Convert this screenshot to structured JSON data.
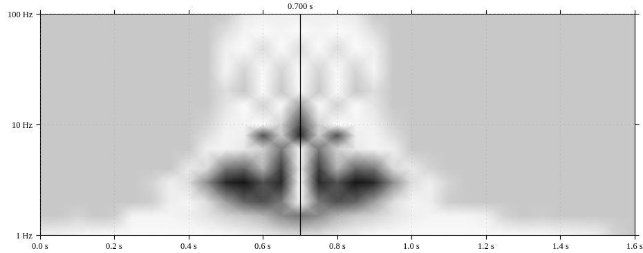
{
  "chart_data": {
    "type": "scalogram",
    "log": "y",
    "grid": true,
    "x": [
      0.0,
      0.05,
      0.1,
      0.15,
      0.2,
      0.25,
      0.3,
      0.35,
      0.4,
      0.45,
      0.5,
      0.55,
      0.6,
      0.65,
      0.7,
      0.75,
      0.8,
      0.85,
      0.9,
      0.95,
      1.0,
      1.05,
      1.1,
      1.15,
      1.2,
      1.25,
      1.3,
      1.35,
      1.4,
      1.45,
      1.5,
      1.55,
      1.6
    ],
    "y": [
      1,
      1.5,
      2,
      3,
      4,
      6,
      8,
      10,
      15,
      20,
      30,
      50,
      70,
      100
    ],
    "cells": [
      [
        0.85,
        0.9,
        0.92,
        0.95,
        0.95,
        0.95,
        0.95,
        0.95,
        0.95,
        0.95,
        0.95,
        0.9,
        0.85,
        0.75,
        0.7,
        0.75,
        0.85,
        0.9,
        0.95,
        0.95,
        0.95,
        0.95,
        0.95,
        0.95,
        0.95,
        0.95,
        0.95,
        0.95,
        0.92,
        0.9,
        0.85,
        0.6,
        0.5
      ],
      [
        0.5,
        0.5,
        0.6,
        0.5,
        0.55,
        0.9,
        0.9,
        0.9,
        0.85,
        0.75,
        0.6,
        0.5,
        0.45,
        0.35,
        0.3,
        0.35,
        0.45,
        0.5,
        0.6,
        0.75,
        0.85,
        0.9,
        0.9,
        0.9,
        0.85,
        0.6,
        0.5,
        0.55,
        0.5,
        0.5,
        0.5,
        0.5,
        0.5
      ],
      [
        0.5,
        0.5,
        0.5,
        0.5,
        0.5,
        0.5,
        0.55,
        0.85,
        0.9,
        0.7,
        0.4,
        0.25,
        0.2,
        0.3,
        0.95,
        0.3,
        0.2,
        0.25,
        0.4,
        0.7,
        0.9,
        0.85,
        0.55,
        0.5,
        0.5,
        0.5,
        0.5,
        0.5,
        0.5,
        0.5,
        0.5,
        0.5,
        0.5
      ],
      [
        0.5,
        0.5,
        0.5,
        0.5,
        0.5,
        0.5,
        0.6,
        0.85,
        0.7,
        0.35,
        0.1,
        0.05,
        0.2,
        0.1,
        1.0,
        0.1,
        0.2,
        0.05,
        0.1,
        0.35,
        0.7,
        0.85,
        0.6,
        0.5,
        0.5,
        0.5,
        0.5,
        0.5,
        0.5,
        0.5,
        0.5,
        0.5,
        0.5
      ],
      [
        0.5,
        0.5,
        0.5,
        0.5,
        0.5,
        0.5,
        0.5,
        0.5,
        0.8,
        0.65,
        0.3,
        0.25,
        0.45,
        0.15,
        0.9,
        0.15,
        0.45,
        0.25,
        0.3,
        0.65,
        0.8,
        0.6,
        0.5,
        0.5,
        0.5,
        0.5,
        0.5,
        0.5,
        0.5,
        0.5,
        0.5,
        0.5,
        0.5
      ],
      [
        0.5,
        0.5,
        0.5,
        0.5,
        0.5,
        0.5,
        0.5,
        0.5,
        0.5,
        0.85,
        0.9,
        0.8,
        0.6,
        0.3,
        0.95,
        0.3,
        0.6,
        0.8,
        0.9,
        0.85,
        0.5,
        0.5,
        0.5,
        0.5,
        0.5,
        0.5,
        0.5,
        0.5,
        0.5,
        0.5,
        0.5,
        0.5,
        0.5
      ],
      [
        0.5,
        0.5,
        0.5,
        0.5,
        0.5,
        0.5,
        0.5,
        0.5,
        0.5,
        0.7,
        0.9,
        0.85,
        0.2,
        0.55,
        0.1,
        0.55,
        0.2,
        0.85,
        0.9,
        0.7,
        0.5,
        0.5,
        0.5,
        0.5,
        0.5,
        0.5,
        0.5,
        0.5,
        0.5,
        0.5,
        0.5,
        0.5,
        0.5
      ],
      [
        0.5,
        0.5,
        0.5,
        0.5,
        0.5,
        0.5,
        0.5,
        0.5,
        0.5,
        0.6,
        0.85,
        0.9,
        0.95,
        0.6,
        0.2,
        0.6,
        0.95,
        0.9,
        0.85,
        0.6,
        0.5,
        0.5,
        0.5,
        0.5,
        0.5,
        0.5,
        0.5,
        0.5,
        0.5,
        0.5,
        0.5,
        0.5,
        0.5
      ],
      [
        0.5,
        0.5,
        0.5,
        0.5,
        0.5,
        0.5,
        0.5,
        0.5,
        0.5,
        0.5,
        0.75,
        0.95,
        0.6,
        0.95,
        0.4,
        0.95,
        0.6,
        0.95,
        0.75,
        0.5,
        0.5,
        0.5,
        0.5,
        0.5,
        0.5,
        0.5,
        0.5,
        0.5,
        0.5,
        0.5,
        0.5,
        0.5,
        0.5
      ],
      [
        0.5,
        0.5,
        0.5,
        0.5,
        0.5,
        0.5,
        0.5,
        0.5,
        0.5,
        0.5,
        0.7,
        0.5,
        0.95,
        0.5,
        0.95,
        0.5,
        0.95,
        0.5,
        0.7,
        0.5,
        0.5,
        0.5,
        0.5,
        0.5,
        0.5,
        0.5,
        0.5,
        0.5,
        0.5,
        0.5,
        0.5,
        0.5,
        0.5
      ],
      [
        0.5,
        0.5,
        0.5,
        0.5,
        0.5,
        0.5,
        0.5,
        0.5,
        0.5,
        0.5,
        0.9,
        0.6,
        0.95,
        0.6,
        0.95,
        0.6,
        0.95,
        0.6,
        0.9,
        0.5,
        0.5,
        0.5,
        0.5,
        0.5,
        0.5,
        0.5,
        0.5,
        0.5,
        0.5,
        0.5,
        0.5,
        0.5,
        0.5
      ],
      [
        0.5,
        0.5,
        0.5,
        0.5,
        0.5,
        0.5,
        0.5,
        0.5,
        0.5,
        0.5,
        0.85,
        0.95,
        0.7,
        0.95,
        0.7,
        0.95,
        0.7,
        0.95,
        0.85,
        0.5,
        0.5,
        0.5,
        0.5,
        0.5,
        0.5,
        0.5,
        0.5,
        0.5,
        0.5,
        0.5,
        0.5,
        0.5,
        0.5
      ],
      [
        0.5,
        0.5,
        0.5,
        0.5,
        0.5,
        0.5,
        0.5,
        0.5,
        0.5,
        0.5,
        0.7,
        0.9,
        0.95,
        0.9,
        0.95,
        0.9,
        0.95,
        0.9,
        0.7,
        0.5,
        0.5,
        0.5,
        0.5,
        0.5,
        0.5,
        0.5,
        0.5,
        0.5,
        0.5,
        0.5,
        0.5,
        0.5,
        0.5
      ],
      [
        0.5,
        0.5,
        0.5,
        0.5,
        0.5,
        0.5,
        0.5,
        0.5,
        0.5,
        0.5,
        0.5,
        0.8,
        0.85,
        0.85,
        0.85,
        0.85,
        0.85,
        0.8,
        0.5,
        0.5,
        0.5,
        0.5,
        0.5,
        0.5,
        0.5,
        0.5,
        0.5,
        0.5,
        0.5,
        0.5,
        0.5,
        0.5,
        0.5
      ]
    ],
    "value_range": [
      0,
      1
    ],
    "xlim": [
      0.0,
      1.6
    ],
    "ylim": [
      1,
      100
    ],
    "xticks": [
      {
        "value": 0.0,
        "label": "0.0 s"
      },
      {
        "value": 0.2,
        "label": "0.2 s"
      },
      {
        "value": 0.4,
        "label": "0.4 s"
      },
      {
        "value": 0.6,
        "label": "0.6 s"
      },
      {
        "value": 0.8,
        "label": "0.8 s"
      },
      {
        "value": 1.0,
        "label": "1.0 s"
      },
      {
        "value": 1.2,
        "label": "1.2 s"
      },
      {
        "value": 1.4,
        "label": "1.4 s"
      },
      {
        "value": 1.6,
        "label": "1.6 s"
      }
    ],
    "yticks": [
      {
        "value": 1,
        "label": "1 Hz"
      },
      {
        "value": 10,
        "label": "10 Hz"
      },
      {
        "value": 100,
        "label": "100 Hz"
      }
    ],
    "cursor": {
      "value": 0.7,
      "label": "0.700 s"
    }
  }
}
